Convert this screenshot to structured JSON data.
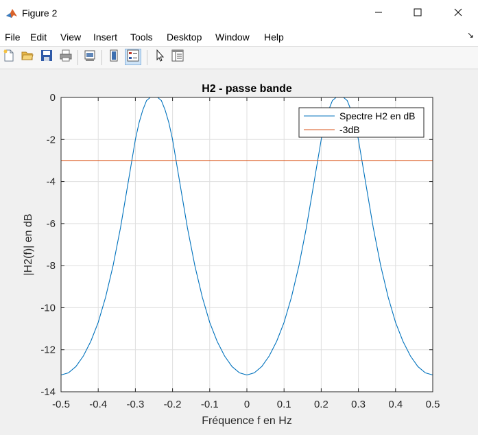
{
  "window": {
    "title": "Figure 2",
    "minimize_icon": "minimize-icon",
    "maximize_icon": "maximize-icon",
    "close_icon": "close-icon"
  },
  "menu": {
    "items": [
      "File",
      "Edit",
      "View",
      "Insert",
      "Tools",
      "Desktop",
      "Window",
      "Help"
    ]
  },
  "toolbar": {
    "icons": [
      "new-figure-icon",
      "open-file-icon",
      "save-icon",
      "print-icon",
      "link-plot-icon",
      "colorbar-icon",
      "legend-icon",
      "pointer-icon",
      "property-editor-icon"
    ]
  },
  "chart_data": {
    "type": "line",
    "title": "H2 - passe bande",
    "xlabel": "Fréquence f en Hz",
    "ylabel": "|H2(f)| en dB",
    "xlim": [
      -0.5,
      0.5
    ],
    "ylim": [
      -14,
      0
    ],
    "xticks": [
      "-0.5",
      "-0.4",
      "-0.3",
      "-0.2",
      "-0.1",
      "0",
      "0.1",
      "0.2",
      "0.3",
      "0.4",
      "0.5"
    ],
    "yticks": [
      "0",
      "-2",
      "-4",
      "-6",
      "-8",
      "-10",
      "-12",
      "-14"
    ],
    "grid": true,
    "legend_position": "top-right",
    "series": [
      {
        "name": "Spectre H2 en dB",
        "color": "#0072BD",
        "x": [
          -0.5,
          -0.48,
          -0.46,
          -0.44,
          -0.42,
          -0.4,
          -0.38,
          -0.36,
          -0.34,
          -0.32,
          -0.3,
          -0.29,
          -0.28,
          -0.27,
          -0.26,
          -0.25,
          -0.24,
          -0.23,
          -0.22,
          -0.21,
          -0.2,
          -0.18,
          -0.16,
          -0.14,
          -0.12,
          -0.1,
          -0.08,
          -0.06,
          -0.04,
          -0.02,
          0,
          0.02,
          0.04,
          0.06,
          0.08,
          0.1,
          0.12,
          0.14,
          0.16,
          0.18,
          0.2,
          0.21,
          0.22,
          0.23,
          0.24,
          0.25,
          0.26,
          0.27,
          0.28,
          0.29,
          0.3,
          0.32,
          0.34,
          0.36,
          0.38,
          0.4,
          0.42,
          0.44,
          0.46,
          0.48,
          0.5
        ],
        "y": [
          -13.2,
          -13.1,
          -12.8,
          -12.3,
          -11.6,
          -10.7,
          -9.5,
          -8.0,
          -6.2,
          -4.1,
          -2.0,
          -1.2,
          -0.6,
          -0.15,
          0,
          0,
          0,
          -0.15,
          -0.6,
          -1.2,
          -2.0,
          -4.1,
          -6.2,
          -8.0,
          -9.5,
          -10.7,
          -11.6,
          -12.3,
          -12.8,
          -13.1,
          -13.2,
          -13.1,
          -12.8,
          -12.3,
          -11.6,
          -10.7,
          -9.5,
          -8.0,
          -6.2,
          -4.1,
          -2.0,
          -1.2,
          -0.6,
          -0.15,
          0,
          0,
          0,
          -0.15,
          -0.6,
          -1.2,
          -2.0,
          -4.1,
          -6.2,
          -8.0,
          -9.5,
          -10.7,
          -11.6,
          -12.3,
          -12.8,
          -13.1,
          -13.2
        ]
      },
      {
        "name": "-3dB",
        "color": "#D95319",
        "x": [
          -0.5,
          0.5
        ],
        "y": [
          -3,
          -3
        ]
      }
    ]
  }
}
